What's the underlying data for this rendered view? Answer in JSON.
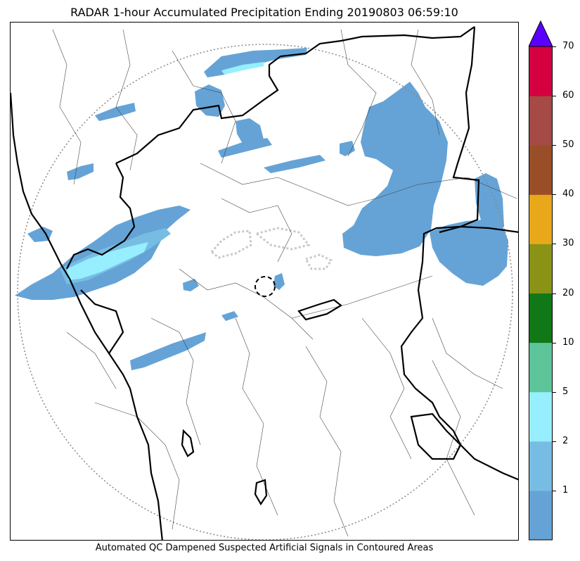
{
  "title": "RADAR 1-hour Accumulated Precipitation Ending 20190803 06:59:10",
  "footer": "Automated QC Dampened Suspected Artificial Signals in Contoured Areas",
  "colorbar": {
    "levels": [
      {
        "label": "",
        "color": "#65a3d6"
      },
      {
        "label": "1",
        "color": "#77bde3"
      },
      {
        "label": "2",
        "color": "#96eefe"
      },
      {
        "label": "5",
        "color": "#5dc599"
      },
      {
        "label": "10",
        "color": "#107816"
      },
      {
        "label": "20",
        "color": "#8a9315"
      },
      {
        "label": "30",
        "color": "#e8a81a"
      },
      {
        "label": "40",
        "color": "#994e28"
      },
      {
        "label": "50",
        "color": "#a54a44"
      },
      {
        "label": "60",
        "color": "#d5003f"
      },
      {
        "label": "70",
        "color": "#5a00ff"
      }
    ],
    "extend_color": "#5a00ff"
  },
  "map": {
    "range_ring_color": "#888888",
    "radar_site_marker": "dashed-circle",
    "qc_contour_color": "#c8c8c8"
  }
}
